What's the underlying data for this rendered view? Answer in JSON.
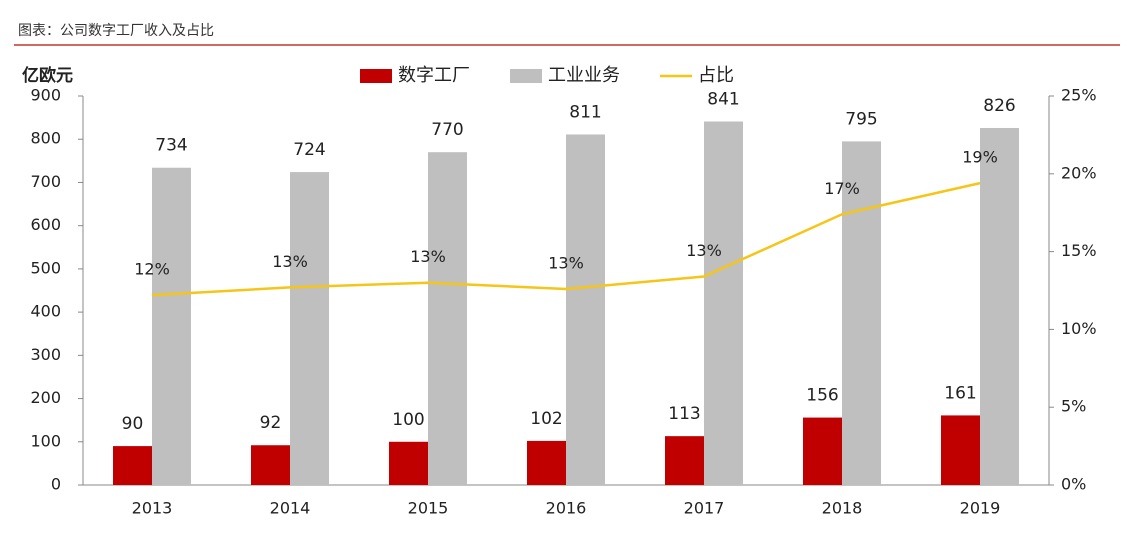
{
  "chart_data": {
    "type": "bar-line",
    "title": "图表：公司数字工厂收入及占比",
    "y_label": "亿欧元",
    "categories": [
      "2013",
      "2014",
      "2015",
      "2016",
      "2017",
      "2018",
      "2019"
    ],
    "series": [
      {
        "name": "数字工厂",
        "type": "bar",
        "color": "#c00000",
        "values": [
          90,
          92,
          100,
          102,
          113,
          156,
          161
        ]
      },
      {
        "name": "工业业务",
        "type": "bar",
        "color": "#bfbfbf",
        "values": [
          734,
          724,
          770,
          811,
          841,
          795,
          826
        ]
      },
      {
        "name": "占比",
        "type": "line",
        "axis": "y2",
        "color": "#f5c518",
        "values": [
          12.2,
          12.7,
          13.0,
          12.6,
          13.4,
          17.4,
          19.4
        ],
        "value_labels": [
          "12%",
          "13%",
          "13%",
          "13%",
          "13%",
          "17%",
          "19%"
        ]
      }
    ],
    "ylim": [
      0,
      900
    ],
    "yticks": [
      0,
      100,
      200,
      300,
      400,
      500,
      600,
      700,
      800,
      900
    ],
    "y2lim": [
      0,
      25
    ],
    "y2ticks": [
      {
        "value": 0,
        "label": "0%"
      },
      {
        "value": 5,
        "label": "5%"
      },
      {
        "value": 10,
        "label": "10%"
      },
      {
        "value": 15,
        "label": "15%"
      },
      {
        "value": 20,
        "label": "20%"
      },
      {
        "value": 25,
        "label": "25%"
      }
    ]
  }
}
